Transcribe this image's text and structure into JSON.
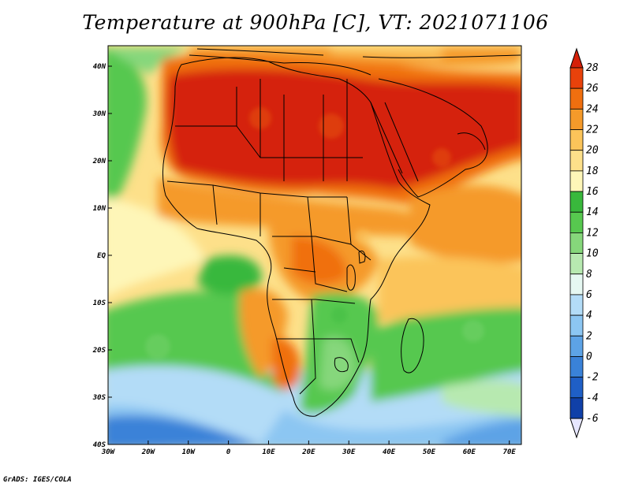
{
  "title": "Temperature at 900hPa [C], VT: 2021071106",
  "credit": "GrADS: IGES/COLA",
  "x_ticks": [
    "30W",
    "20W",
    "10W",
    "0",
    "10E",
    "20E",
    "30E",
    "40E",
    "50E",
    "60E",
    "70E"
  ],
  "y_ticks": [
    "40N",
    "30N",
    "20N",
    "10N",
    "EQ",
    "10S",
    "20S",
    "30S",
    "40S"
  ],
  "colorbar": {
    "levels": [
      "28",
      "26",
      "24",
      "22",
      "20",
      "18",
      "16",
      "14",
      "12",
      "10",
      "8",
      "6",
      "4",
      "2",
      "0",
      "-2",
      "-4",
      "-6"
    ],
    "colors": [
      "#d52008",
      "#e8420b",
      "#f06f0f",
      "#f59a2a",
      "#fbc45a",
      "#fde08a",
      "#fef6b8",
      "#39b83c",
      "#57c84f",
      "#86d77b",
      "#b7e9b0",
      "#e6f8f2",
      "#b3dcf7",
      "#8cc6f2",
      "#5da3e6",
      "#3a82d8",
      "#1f5fc6",
      "#1040a8",
      "#0b1f7e"
    ]
  }
}
